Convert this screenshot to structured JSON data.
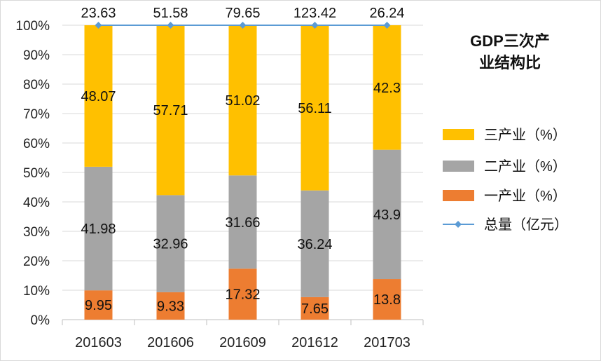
{
  "chart_data": {
    "type": "bar",
    "stacked": true,
    "title": "GDP三次产业结构比",
    "title_lines": [
      "GDP三次产",
      "业结构比"
    ],
    "categories": [
      "201603",
      "201606",
      "201609",
      "201612",
      "201703"
    ],
    "ylim": [
      0,
      100
    ],
    "yticks": [
      0,
      10,
      20,
      30,
      40,
      50,
      60,
      70,
      80,
      90,
      100
    ],
    "ytick_labels": [
      "0%",
      "10%",
      "20%",
      "30%",
      "40%",
      "50%",
      "60%",
      "70%",
      "80%",
      "90%",
      "100%"
    ],
    "grid": true,
    "legend_position": "right",
    "series": [
      {
        "name": "一产业（%）",
        "values": [
          9.95,
          9.33,
          17.32,
          7.65,
          13.8
        ],
        "labels": [
          "9.95",
          "9.33",
          "17.32",
          "7.65",
          "13.8"
        ],
        "color": "#ED7D31"
      },
      {
        "name": "二产业（%）",
        "values": [
          41.98,
          32.96,
          31.66,
          36.24,
          43.9
        ],
        "labels": [
          "41.98",
          "32.96",
          "31.66",
          "36.24",
          "43.9"
        ],
        "color": "#A5A5A5"
      },
      {
        "name": "三产业（%）",
        "values": [
          48.07,
          57.71,
          51.02,
          56.11,
          42.3
        ],
        "labels": [
          "48.07",
          "57.71",
          "51.02",
          "56.11",
          "42.3"
        ],
        "color": "#FFC000"
      }
    ],
    "line_series": {
      "name": "总量（亿元）",
      "values": [
        23.63,
        51.58,
        79.65,
        123.42,
        26.24
      ],
      "labels": [
        "23.63",
        "51.58",
        "79.65",
        "123.42",
        "26.24"
      ],
      "color": "#5B9BD5"
    },
    "legend_order": [
      "三产业（%）",
      "二产业（%）",
      "一产业（%）",
      "总量（亿元）"
    ]
  }
}
